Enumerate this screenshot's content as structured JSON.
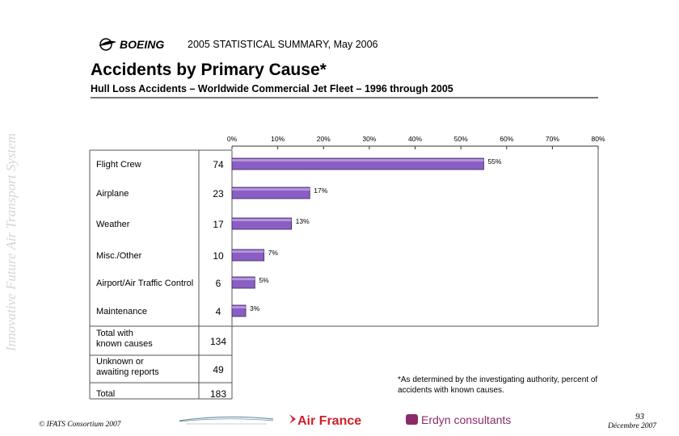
{
  "side_text": "Innovative Future Air Transport System",
  "header": {
    "logo_text": "BOEING",
    "summary_text": "2005 STATISTICAL SUMMARY, May 2006"
  },
  "chart_data": {
    "type": "bar",
    "title": "Accidents by Primary Cause*",
    "subtitle": "Hull Loss Accidents – Worldwide Commercial Jet Fleet – 1996 through 2005",
    "categories": [
      "Flight Crew",
      "Airplane",
      "Weather",
      "Misc./Other",
      "Airport/Air Traffic Control",
      "Maintenance"
    ],
    "counts": [
      "74",
      "23",
      "17",
      "10",
      "6",
      "4"
    ],
    "values": [
      55,
      17,
      13,
      7,
      5,
      3
    ],
    "value_labels": [
      "55%",
      "17%",
      "13%",
      "7%",
      "5%",
      "3%"
    ],
    "x_ticks": [
      "0%",
      "10%",
      "20%",
      "30%",
      "40%",
      "50%",
      "60%",
      "70%",
      "80%"
    ],
    "xlim": [
      0,
      80
    ],
    "bar_color": "#8a5fc4",
    "summary_rows": [
      {
        "label": "Total with known causes",
        "count": "134"
      },
      {
        "label": "Unknown or awaiting reports",
        "count": "49"
      },
      {
        "label": "Total",
        "count": "183"
      }
    ]
  },
  "footnote": "*As determined by the investigating authority, percent of accidents with known causes.",
  "footer": {
    "copyright": "© IFATS Consortium 2007",
    "page_number": "93",
    "date": "Décembre 2007",
    "partner_airline": "Air France",
    "partner_consultants": "Erdyn consultants"
  }
}
